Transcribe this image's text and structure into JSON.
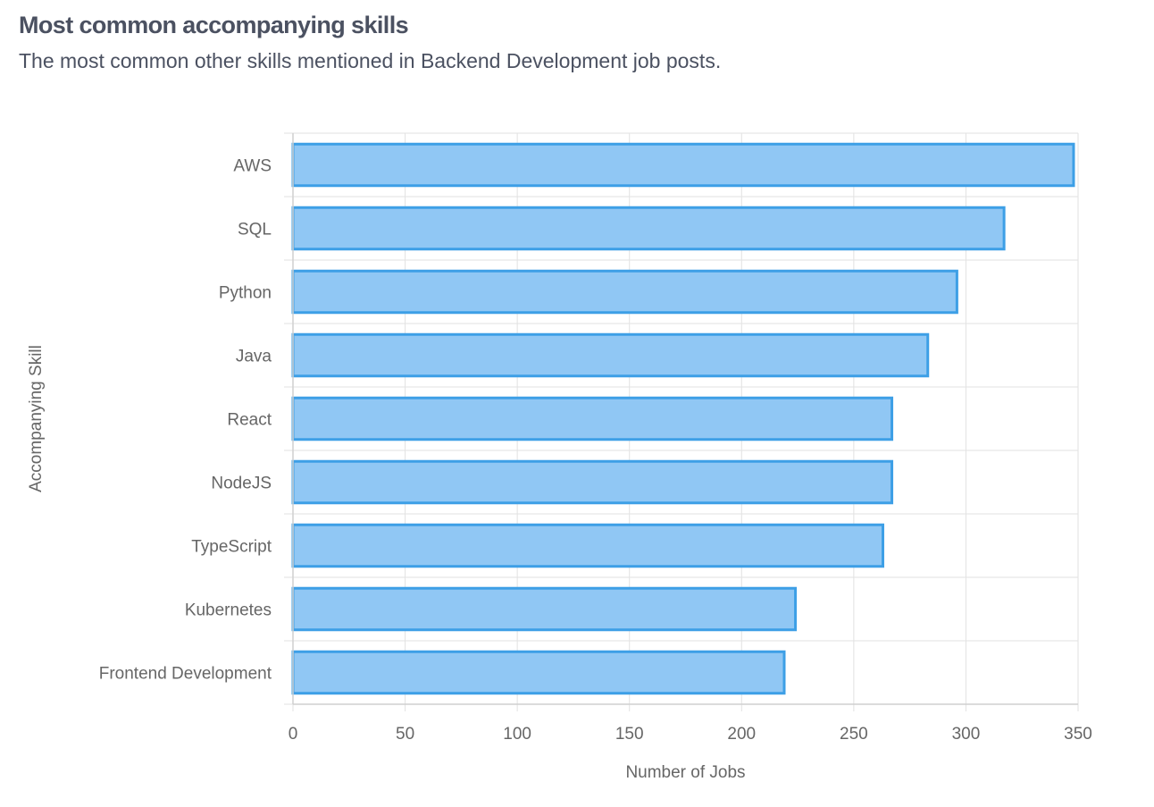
{
  "header": {
    "title": "Most common accompanying skills",
    "subtitle": "The most common other skills mentioned in Backend Development job posts."
  },
  "chart_data": {
    "type": "bar",
    "orientation": "horizontal",
    "categories": [
      "AWS",
      "SQL",
      "Python",
      "Java",
      "React",
      "NodeJS",
      "TypeScript",
      "Kubernetes",
      "Frontend Development"
    ],
    "series": [
      {
        "values": [
          348,
          317,
          296,
          283,
          267,
          267,
          263,
          224,
          219
        ]
      }
    ],
    "xlabel": "Number of Jobs",
    "ylabel": "Accompanying Skill",
    "xlim": [
      0,
      350
    ],
    "xticks": [
      0,
      50,
      100,
      150,
      200,
      250,
      300,
      350
    ],
    "grid": true,
    "legend": "none",
    "colors": {
      "bar_fill": "#90c7f4",
      "bar_stroke": "#3d9fe6",
      "grid": "#e2e2e2"
    }
  }
}
